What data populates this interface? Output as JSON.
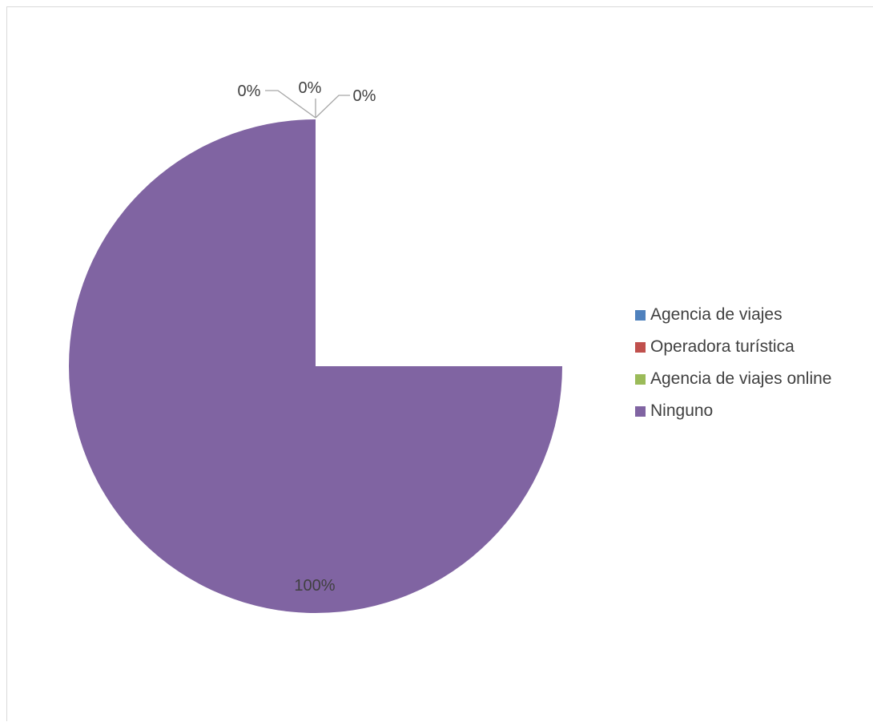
{
  "chart_data": {
    "type": "pie",
    "title": "",
    "categories": [
      "Agencia de viajes",
      "Operadora turística",
      "Agencia de viajes online",
      "Ninguno"
    ],
    "values": [
      0,
      0,
      0,
      100
    ],
    "data_labels": [
      "0%",
      "0%",
      "0%",
      "100%"
    ],
    "colors": [
      "#4f81bd",
      "#c0504d",
      "#9bbb59",
      "#8064a2"
    ],
    "start_angle_deg": 90,
    "legend_position": "right"
  }
}
